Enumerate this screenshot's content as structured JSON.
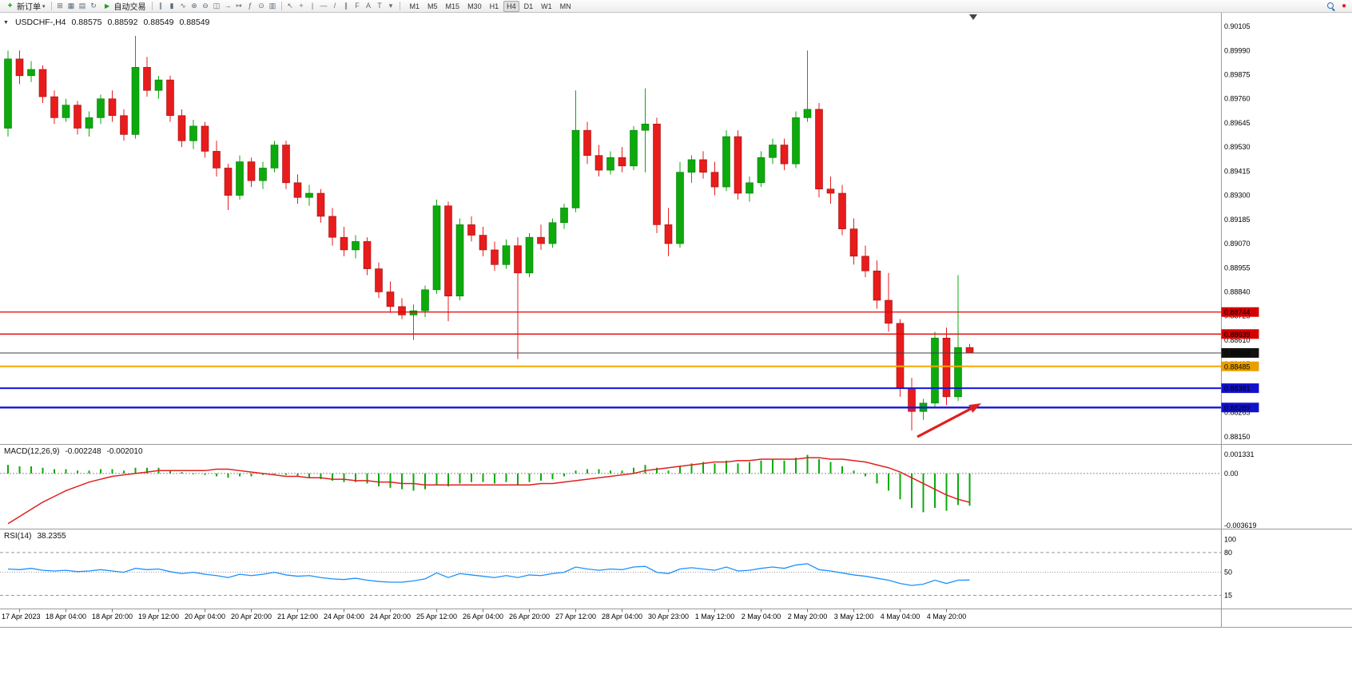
{
  "toolbar": {
    "new_order_label": "新订单",
    "auto_trading_label": "自动交易",
    "file_icons": [
      {
        "name": "new-chart-icon",
        "glyph": "⊞"
      },
      {
        "name": "profiles-icon",
        "glyph": "▦"
      },
      {
        "name": "print-icon",
        "glyph": "▤"
      },
      {
        "name": "refresh-icon",
        "glyph": "↻"
      }
    ],
    "chart_icons": [
      {
        "name": "bar-chart-icon",
        "glyph": "∥"
      },
      {
        "name": "candlestick-chart-icon",
        "glyph": "▮"
      },
      {
        "name": "line-chart-icon",
        "glyph": "∿"
      },
      {
        "name": "zoom-in-icon",
        "glyph": "⊕"
      },
      {
        "name": "zoom-out-icon",
        "glyph": "⊖"
      },
      {
        "name": "tile-windows-icon",
        "glyph": "◫"
      },
      {
        "name": "auto-scroll-icon",
        "glyph": "→"
      },
      {
        "name": "chart-shift-icon",
        "glyph": "↦"
      },
      {
        "name": "indicators-icon",
        "glyph": "ƒ"
      },
      {
        "name": "time-periods-icon",
        "glyph": "⊙"
      },
      {
        "name": "templates-icon",
        "glyph": "▥"
      }
    ],
    "draw_icons": [
      {
        "name": "cursor-icon",
        "glyph": "↖"
      },
      {
        "name": "crosshair-icon",
        "glyph": "+"
      },
      {
        "name": "vertical-line-icon",
        "glyph": "|"
      },
      {
        "name": "horizontal-line-icon",
        "glyph": "—"
      },
      {
        "name": "trendline-icon",
        "glyph": "/"
      },
      {
        "name": "channel-icon",
        "glyph": "∥"
      },
      {
        "name": "fibonacci-icon",
        "glyph": "F"
      },
      {
        "name": "text-icon",
        "glyph": "A"
      },
      {
        "name": "label-icon",
        "glyph": "T"
      },
      {
        "name": "shapes-icon",
        "glyph": "▾"
      }
    ],
    "timeframes": [
      "M1",
      "M5",
      "M15",
      "M30",
      "H1",
      "H4",
      "D1",
      "W1",
      "MN"
    ],
    "active_timeframe": "H4"
  },
  "chart_header": {
    "symbol": "USDCHF-,H4",
    "open": "0.88575",
    "high": "0.88592",
    "low": "0.88549",
    "close": "0.88549"
  },
  "price_axis": {
    "labels": [
      "0.90105",
      "0.89990",
      "0.89875",
      "0.89760",
      "0.89645",
      "0.89530",
      "0.89415",
      "0.89300",
      "0.89185",
      "0.89070",
      "0.88955",
      "0.88840",
      "0.88725",
      "0.88610",
      "0.88495",
      "0.88380",
      "0.88265",
      "0.88150"
    ]
  },
  "hlines": [
    {
      "price": 0.88744,
      "label": "0.88744",
      "color": "#e00000",
      "width": 1.3,
      "badge_color": "#d40000"
    },
    {
      "price": 0.88639,
      "label": "0.88639",
      "color": "#e00000",
      "width": 1.3,
      "badge_color": "#d40000"
    },
    {
      "price": 0.88549,
      "label": "0.88549",
      "color": "#404040",
      "width": 1,
      "badge_color": "#111111",
      "role": "current-price"
    },
    {
      "price": 0.88485,
      "label": "0.88485",
      "color": "#f5a800",
      "width": 2,
      "badge_color": "#e89e00"
    },
    {
      "price": 0.88381,
      "label": "0.88381",
      "color": "#1414dd",
      "width": 2,
      "badge_color": "#1111cc"
    },
    {
      "price": 0.88289,
      "label": "0.88289",
      "color": "#1414dd",
      "width": 2.4,
      "badge_color": "#1111cc"
    }
  ],
  "macd_panel": {
    "label": "MACD(12,26,9)",
    "value_main": "-0.002248",
    "value_signal": "-0.002010",
    "axis": [
      "0.001331",
      "0.00",
      "-0.003619"
    ]
  },
  "rsi_panel": {
    "label": "RSI(14)",
    "value": "38.2355",
    "axis": [
      "100",
      "80",
      "50",
      "15"
    ],
    "levels": [
      {
        "value": 80,
        "style": "dashed"
      },
      {
        "value": 50,
        "style": "dotted"
      },
      {
        "value": 15,
        "style": "dashed"
      }
    ]
  },
  "time_axis": {
    "first_label_index": 1,
    "label_step": 4,
    "labels": [
      "17 Apr 2023",
      "18 Apr 04:00",
      "18 Apr 20:00",
      "19 Apr 12:00",
      "20 Apr 04:00",
      "20 Apr 20:00",
      "21 Apr 12:00",
      "24 Apr 04:00",
      "24 Apr 20:00",
      "25 Apr 12:00",
      "26 Apr 04:00",
      "26 Apr 20:00",
      "27 Apr 12:00",
      "28 Apr 04:00",
      "30 Apr 23:00",
      "1 May 12:00",
      "2 May 04:00",
      "2 May 20:00",
      "3 May 12:00",
      "4 May 04:00",
      "4 May 20:00"
    ]
  },
  "chart_data": {
    "type": "candlestick",
    "symbol": "USDCHF",
    "timeframe": "H4",
    "price_range": [
      0.88115,
      0.9017
    ],
    "candles": {
      "open": [
        0.8962,
        0.8995,
        0.8987,
        0.899,
        0.8977,
        0.8967,
        0.8973,
        0.8962,
        0.8967,
        0.8976,
        0.8968,
        0.8959,
        0.8991,
        0.898,
        0.8985,
        0.8968,
        0.8956,
        0.8963,
        0.8951,
        0.8943,
        0.893,
        0.8946,
        0.8937,
        0.8943,
        0.8954,
        0.8936,
        0.8929,
        0.8931,
        0.892,
        0.891,
        0.8904,
        0.8908,
        0.8895,
        0.8884,
        0.8877,
        0.8873,
        0.8875,
        0.8885,
        0.8925,
        0.8882,
        0.8916,
        0.8911,
        0.8904,
        0.8897,
        0.8906,
        0.8893,
        0.891,
        0.8907,
        0.8917,
        0.8924,
        0.8961,
        0.8949,
        0.8942,
        0.8948,
        0.8944,
        0.8961,
        0.8964,
        0.8916,
        0.8907,
        0.8941,
        0.8947,
        0.8941,
        0.8934,
        0.8958,
        0.8931,
        0.8936,
        0.8948,
        0.8954,
        0.8945,
        0.8967,
        0.8971,
        0.8933,
        0.8931,
        0.8914,
        0.8901,
        0.8894,
        0.888,
        0.8869,
        0.8838,
        0.8827,
        0.8831,
        0.8862,
        0.8834,
        0.88575
      ],
      "high": [
        0.8999,
        0.8999,
        0.8994,
        0.8992,
        0.898,
        0.8976,
        0.8975,
        0.897,
        0.8978,
        0.898,
        0.8971,
        0.9006,
        0.8996,
        0.8987,
        0.8987,
        0.8971,
        0.8966,
        0.8965,
        0.8956,
        0.8945,
        0.8949,
        0.8948,
        0.8946,
        0.8956,
        0.8956,
        0.894,
        0.8935,
        0.8933,
        0.8924,
        0.8915,
        0.8911,
        0.891,
        0.8898,
        0.8889,
        0.8881,
        0.8878,
        0.8887,
        0.8928,
        0.8927,
        0.8919,
        0.892,
        0.8915,
        0.8908,
        0.8909,
        0.891,
        0.8912,
        0.8916,
        0.8919,
        0.8926,
        0.898,
        0.8965,
        0.8954,
        0.8951,
        0.8953,
        0.8963,
        0.8981,
        0.8967,
        0.8924,
        0.8946,
        0.8949,
        0.8951,
        0.8946,
        0.8961,
        0.8961,
        0.8939,
        0.8951,
        0.8957,
        0.8957,
        0.897,
        0.8999,
        0.8974,
        0.8939,
        0.8935,
        0.8919,
        0.8906,
        0.8899,
        0.8893,
        0.8871,
        0.8843,
        0.8833,
        0.8865,
        0.8867,
        0.8892,
        0.88592
      ],
      "low": [
        0.8958,
        0.8983,
        0.8984,
        0.8974,
        0.8964,
        0.8965,
        0.8959,
        0.8958,
        0.8964,
        0.8965,
        0.8956,
        0.8957,
        0.8977,
        0.8976,
        0.8965,
        0.8953,
        0.8952,
        0.8948,
        0.8939,
        0.8923,
        0.8928,
        0.8934,
        0.8933,
        0.8941,
        0.8933,
        0.8926,
        0.8925,
        0.8917,
        0.8906,
        0.8901,
        0.89,
        0.8892,
        0.8881,
        0.8874,
        0.8871,
        0.8861,
        0.8872,
        0.8883,
        0.887,
        0.888,
        0.8908,
        0.8901,
        0.8894,
        0.8895,
        0.8852,
        0.8891,
        0.8904,
        0.8905,
        0.8914,
        0.8922,
        0.8945,
        0.8939,
        0.894,
        0.8941,
        0.8942,
        0.8941,
        0.8912,
        0.8901,
        0.8905,
        0.8936,
        0.8938,
        0.893,
        0.8932,
        0.8928,
        0.8927,
        0.8934,
        0.8945,
        0.8942,
        0.8943,
        0.8965,
        0.8929,
        0.8926,
        0.8911,
        0.8897,
        0.8891,
        0.8876,
        0.8865,
        0.8834,
        0.8818,
        0.8823,
        0.8829,
        0.883,
        0.8832,
        0.88549
      ],
      "close": [
        0.8995,
        0.8987,
        0.899,
        0.8977,
        0.8967,
        0.8973,
        0.8962,
        0.8967,
        0.8976,
        0.8968,
        0.8959,
        0.8991,
        0.898,
        0.8985,
        0.8968,
        0.8956,
        0.8963,
        0.8951,
        0.8943,
        0.893,
        0.8946,
        0.8937,
        0.8943,
        0.8954,
        0.8936,
        0.8929,
        0.8931,
        0.892,
        0.891,
        0.8904,
        0.8908,
        0.8895,
        0.8884,
        0.8877,
        0.8873,
        0.8875,
        0.8885,
        0.8925,
        0.8882,
        0.8916,
        0.8911,
        0.8904,
        0.8897,
        0.8906,
        0.8893,
        0.891,
        0.8907,
        0.8917,
        0.8924,
        0.8961,
        0.8949,
        0.8942,
        0.8948,
        0.8944,
        0.8961,
        0.8964,
        0.8916,
        0.8907,
        0.8941,
        0.8947,
        0.8941,
        0.8934,
        0.8958,
        0.8931,
        0.8936,
        0.8948,
        0.8954,
        0.8945,
        0.8967,
        0.8971,
        0.8933,
        0.8931,
        0.8914,
        0.8901,
        0.8894,
        0.888,
        0.8869,
        0.8838,
        0.8827,
        0.8831,
        0.8862,
        0.8834,
        0.88575,
        0.88549
      ]
    },
    "indicators": {
      "macd": {
        "params": "12,26,9",
        "range": [
          -0.00385,
          0.002
        ],
        "histogram": [
          0.0006,
          0.0005,
          0.0005,
          0.0004,
          0.0003,
          0.0003,
          0.0002,
          0.0002,
          0.0003,
          0.0003,
          0.0002,
          0.0004,
          0.0004,
          0.0004,
          0.0002,
          0.0001,
          0.0,
          -0.0001,
          -0.0002,
          -0.0003,
          -0.0002,
          -0.0002,
          -0.0001,
          0.0,
          -0.0001,
          -0.0002,
          -0.0003,
          -0.0004,
          -0.0005,
          -0.0006,
          -0.0006,
          -0.0007,
          -0.0009,
          -0.001,
          -0.0011,
          -0.0012,
          -0.0011,
          -0.0008,
          -0.0009,
          -0.0007,
          -0.0006,
          -0.0006,
          -0.0007,
          -0.0006,
          -0.0008,
          -0.0006,
          -0.0005,
          -0.0004,
          -0.0002,
          0.0002,
          0.0003,
          0.0003,
          0.0002,
          0.0002,
          0.0004,
          0.0006,
          0.0004,
          0.0002,
          0.0005,
          0.0007,
          0.0008,
          0.0007,
          0.0009,
          0.0007,
          0.0008,
          0.0009,
          0.001,
          0.0009,
          0.0011,
          0.0013,
          0.001,
          0.0008,
          0.0005,
          0.0002,
          -0.0002,
          -0.0007,
          -0.0012,
          -0.0018,
          -0.0024,
          -0.0027,
          -0.0024,
          -0.0026,
          -0.0022,
          -0.002248
        ],
        "signal": [
          -0.0035,
          -0.003,
          -0.0025,
          -0.002,
          -0.0016,
          -0.0012,
          -0.0009,
          -0.0006,
          -0.0004,
          -0.0002,
          -0.0001,
          0.0,
          0.0001,
          0.0002,
          0.0002,
          0.0002,
          0.0002,
          0.0002,
          0.0003,
          0.0003,
          0.0002,
          0.0001,
          0.0,
          -0.0001,
          -0.0002,
          -0.0002,
          -0.0003,
          -0.0003,
          -0.0004,
          -0.0004,
          -0.0005,
          -0.0005,
          -0.0006,
          -0.0006,
          -0.0007,
          -0.0007,
          -0.0008,
          -0.0008,
          -0.0008,
          -0.0008,
          -0.0008,
          -0.0008,
          -0.0008,
          -0.0008,
          -0.0008,
          -0.0008,
          -0.0007,
          -0.0007,
          -0.0006,
          -0.0005,
          -0.0004,
          -0.0003,
          -0.0002,
          -0.0001,
          0.0,
          0.0002,
          0.0003,
          0.0004,
          0.0005,
          0.0006,
          0.0007,
          0.0008,
          0.0008,
          0.0009,
          0.0009,
          0.001,
          0.001,
          0.001,
          0.001,
          0.0011,
          0.0011,
          0.001,
          0.001,
          0.0009,
          0.0008,
          0.0006,
          0.0004,
          0.0001,
          -0.0003,
          -0.0007,
          -0.0011,
          -0.0015,
          -0.0018,
          -0.00201
        ]
      },
      "rsi": {
        "params": "14",
        "range": [
          -5,
          115
        ],
        "values": [
          55,
          54,
          56,
          53,
          52,
          53,
          51,
          52,
          54,
          52,
          50,
          56,
          54,
          55,
          51,
          48,
          50,
          47,
          45,
          42,
          47,
          45,
          47,
          50,
          46,
          44,
          45,
          42,
          40,
          39,
          41,
          38,
          36,
          35,
          35,
          37,
          40,
          49,
          42,
          48,
          46,
          44,
          42,
          45,
          42,
          46,
          45,
          48,
          50,
          58,
          55,
          53,
          55,
          54,
          58,
          59,
          50,
          48,
          55,
          57,
          55,
          53,
          58,
          52,
          53,
          56,
          58,
          56,
          61,
          63,
          54,
          52,
          49,
          46,
          44,
          41,
          38,
          33,
          30,
          32,
          38,
          33,
          38,
          38.2355
        ]
      }
    },
    "annotations": [
      {
        "type": "arrow",
        "from": [
          1148,
          531
        ],
        "to": [
          1228,
          489
        ],
        "color": "#e02020"
      }
    ]
  },
  "colors": {
    "bull": "#0caa0c",
    "bull_border": "#067806",
    "bear": "#e81c1c",
    "bear_border": "#9c0f0f",
    "macd_histogram": "#0caa0c",
    "macd_signal": "#e02020",
    "rsi_line": "#1e90ff",
    "divider": "#9a9a9a",
    "axis_text": "#000000"
  }
}
